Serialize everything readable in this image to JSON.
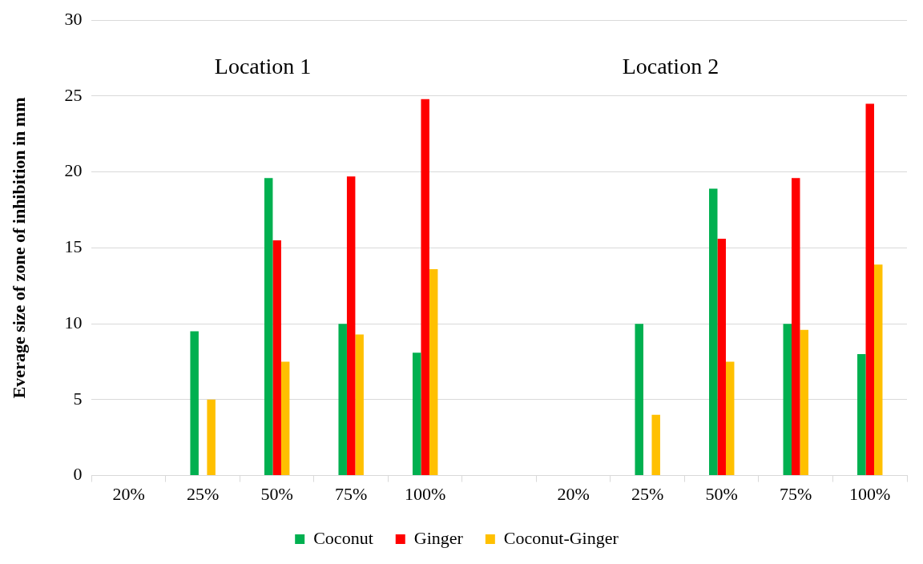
{
  "chart_data": {
    "type": "bar",
    "ylabel": "Everage size of zone of inhibition in mm",
    "categories": [
      "20%",
      "25%",
      "50%",
      "75%",
      "100%",
      null,
      "20%",
      "25%",
      "50%",
      "75%",
      "100%"
    ],
    "series": [
      {
        "name": "Coconut",
        "color": "#00b050",
        "values": [
          null,
          9.5,
          19.6,
          10,
          8.1,
          null,
          null,
          10,
          18.9,
          10,
          8
        ]
      },
      {
        "name": "Ginger",
        "color": "#ff0000",
        "values": [
          null,
          null,
          15.5,
          19.7,
          24.8,
          null,
          null,
          null,
          15.6,
          19.6,
          24.5
        ]
      },
      {
        "name": "Coconut-Ginger",
        "color": "#ffc000",
        "values": [
          null,
          5,
          7.5,
          9.3,
          13.6,
          null,
          null,
          4,
          7.5,
          9.6,
          13.9
        ]
      }
    ],
    "ylim": [
      0,
      30
    ],
    "yticks": [
      0,
      5,
      10,
      15,
      20,
      25,
      30
    ],
    "grid": "y",
    "legend": "bottom",
    "annotations": [
      "Location 1",
      "Location 2"
    ]
  }
}
